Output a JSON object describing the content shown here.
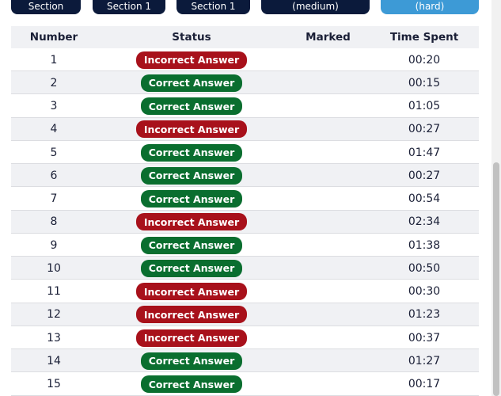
{
  "tabs": [
    {
      "label": "Section",
      "color": "#0b1a3b"
    },
    {
      "label": "Section 1",
      "color": "#0b1a3b"
    },
    {
      "label": "Section 1",
      "color": "#0b1a3b"
    },
    {
      "label": "(medium)",
      "color": "#0b1a3b"
    },
    {
      "label": "(hard)",
      "color": "#3d9ad6"
    }
  ],
  "table": {
    "headers": [
      "Number",
      "Status",
      "Marked",
      "Time Spent"
    ],
    "rows": [
      {
        "number": 1,
        "status": "Incorrect Answer",
        "status_color": "#a8111b",
        "time": "00:20"
      },
      {
        "number": 2,
        "status": "Correct Answer",
        "status_color": "#0a6e2f",
        "time": "00:15"
      },
      {
        "number": 3,
        "status": "Correct Answer",
        "status_color": "#0a6e2f",
        "time": "01:05"
      },
      {
        "number": 4,
        "status": "Incorrect Answer",
        "status_color": "#a8111b",
        "time": "00:27"
      },
      {
        "number": 5,
        "status": "Correct Answer",
        "status_color": "#0a6e2f",
        "time": "01:47"
      },
      {
        "number": 6,
        "status": "Correct Answer",
        "status_color": "#0a6e2f",
        "time": "00:27"
      },
      {
        "number": 7,
        "status": "Correct Answer",
        "status_color": "#0a6e2f",
        "time": "00:54"
      },
      {
        "number": 8,
        "status": "Incorrect Answer",
        "status_color": "#a8111b",
        "time": "02:34"
      },
      {
        "number": 9,
        "status": "Correct Answer",
        "status_color": "#0a6e2f",
        "time": "01:38"
      },
      {
        "number": 10,
        "status": "Correct Answer",
        "status_color": "#0a6e2f",
        "time": "00:50"
      },
      {
        "number": 11,
        "status": "Incorrect Answer",
        "status_color": "#a8111b",
        "time": "00:30"
      },
      {
        "number": 12,
        "status": "Incorrect Answer",
        "status_color": "#a8111b",
        "time": "01:23"
      },
      {
        "number": 13,
        "status": "Incorrect Answer",
        "status_color": "#a8111b",
        "time": "00:37"
      },
      {
        "number": 14,
        "status": "Correct Answer",
        "status_color": "#0a6e2f",
        "time": "01:27"
      },
      {
        "number": 15,
        "status": "Correct Answer",
        "status_color": "#0a6e2f",
        "time": "00:17"
      }
    ]
  }
}
